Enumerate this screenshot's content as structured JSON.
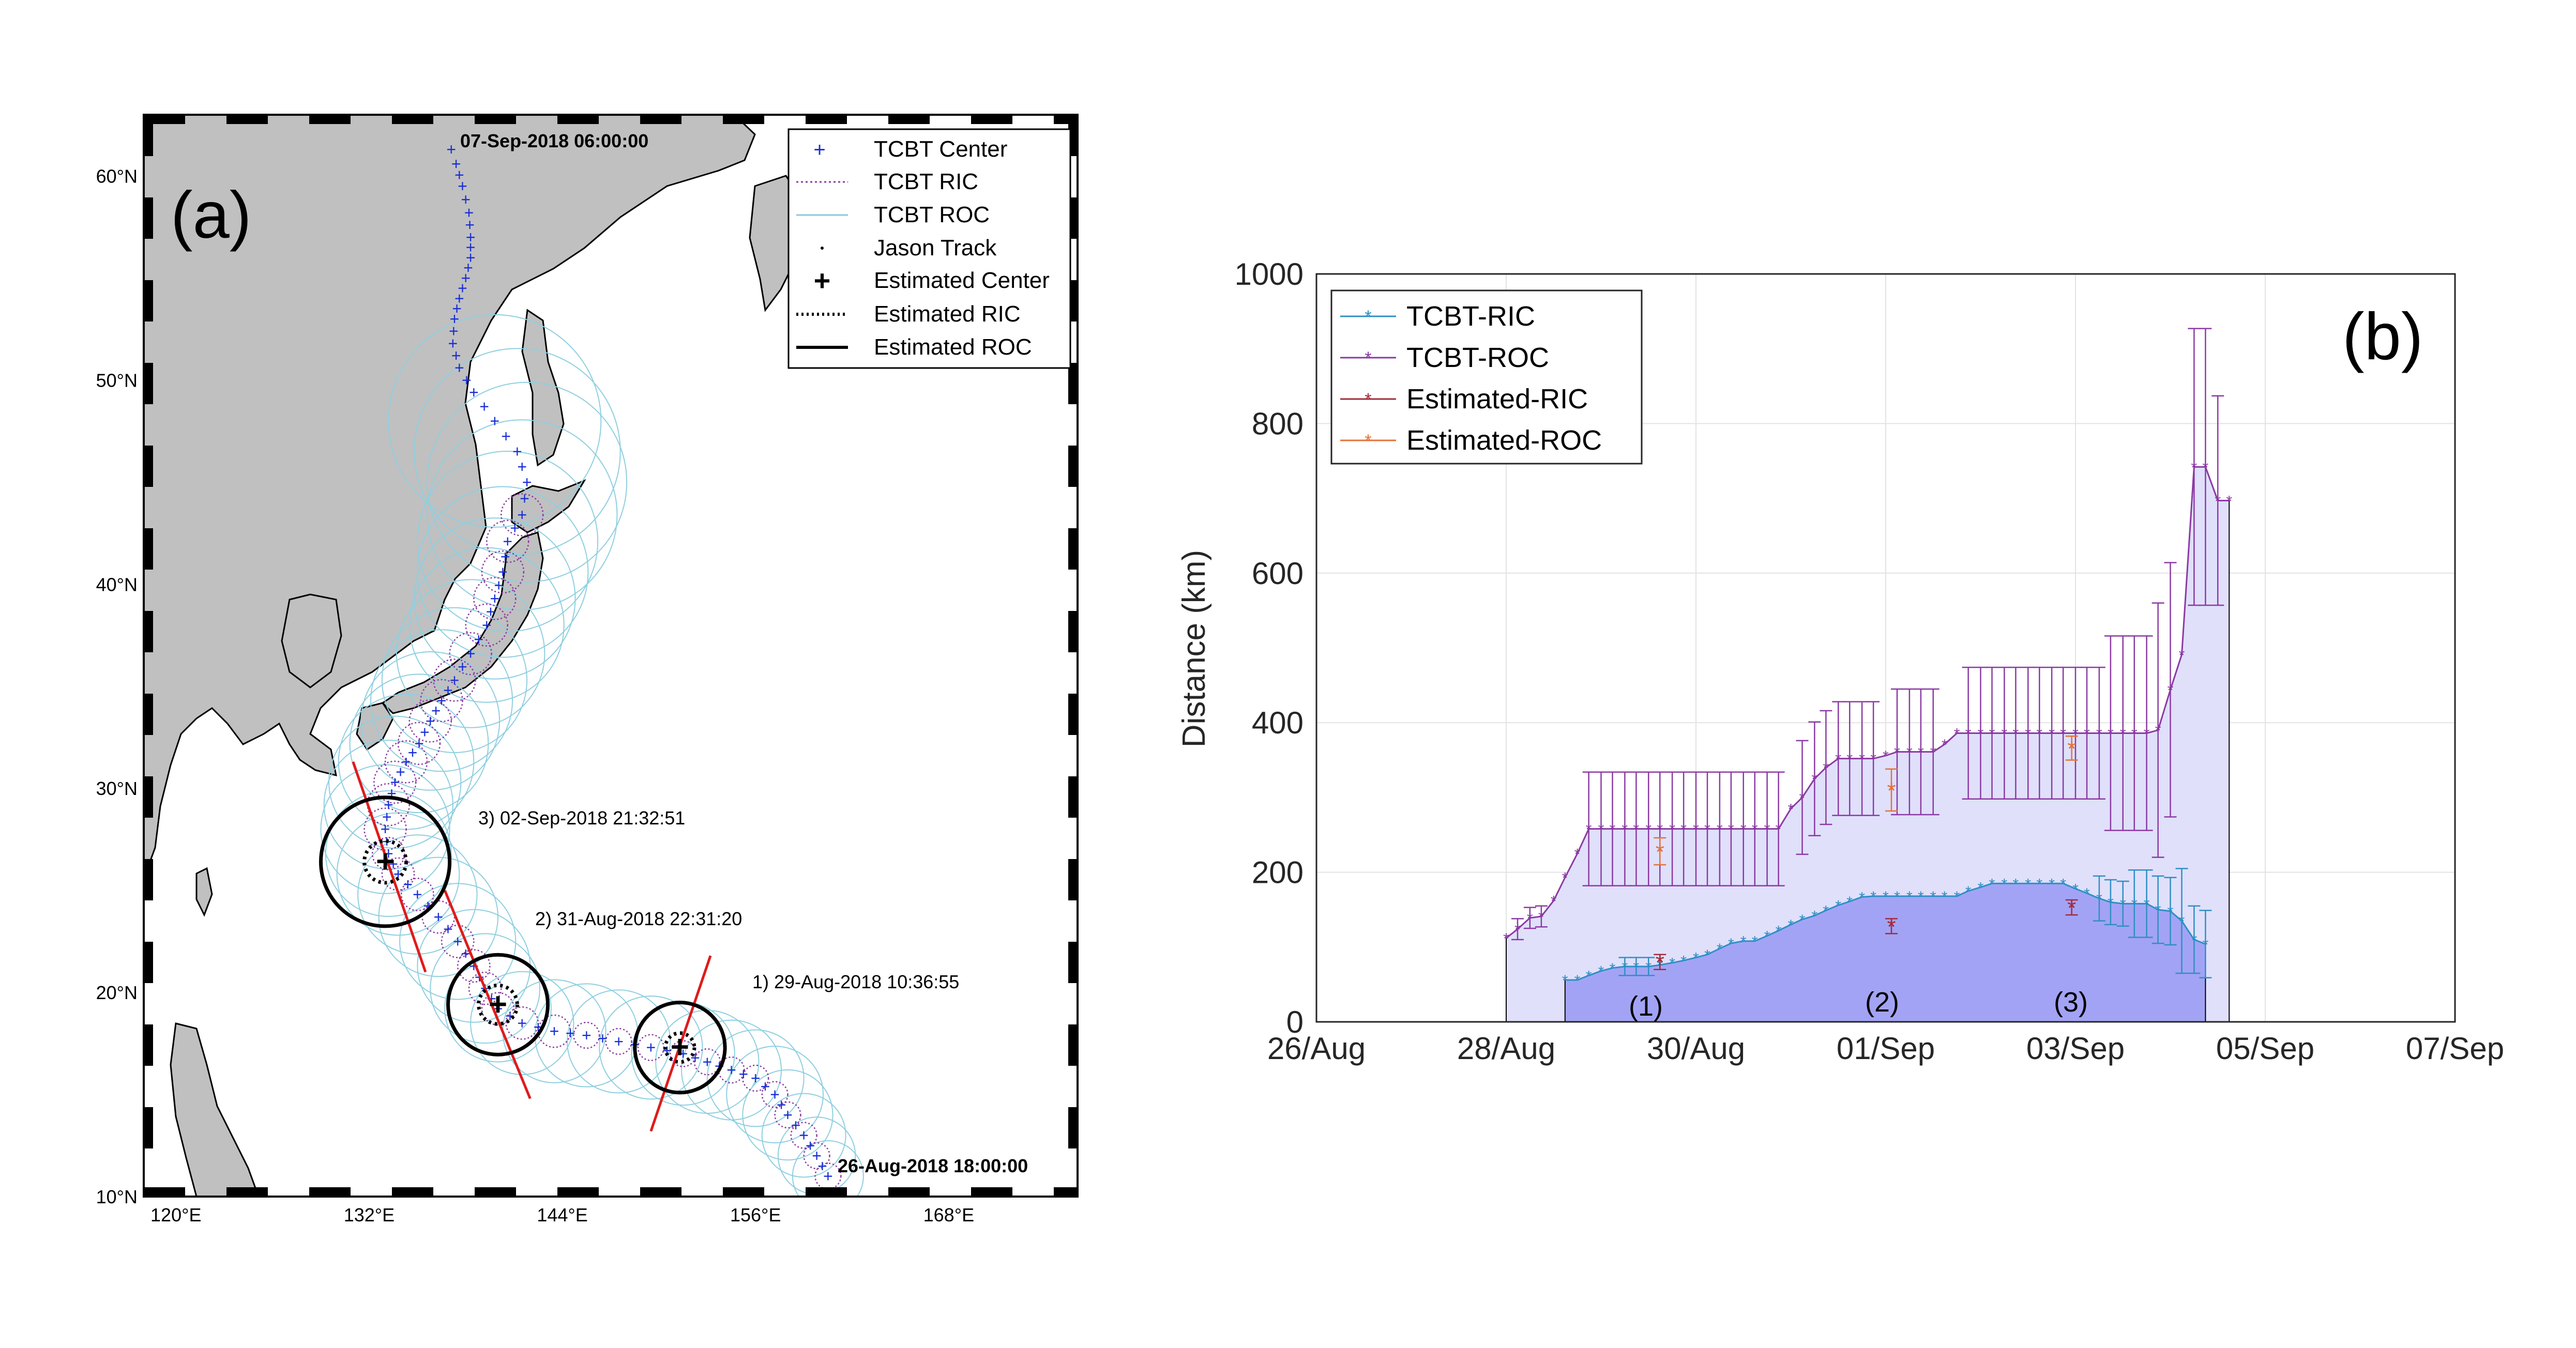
{
  "chart_data": [
    {
      "type": "scatter",
      "panel_label": "(a)",
      "xticks": [
        "120°E",
        "132°E",
        "144°E",
        "156°E",
        "168°E"
      ],
      "yticks": [
        "10°N",
        "20°N",
        "30°N",
        "40°N",
        "50°N",
        "60°N"
      ],
      "xlim": [
        118,
        176
      ],
      "ylim": [
        10,
        63
      ],
      "legend": {
        "placement": "top-right",
        "entries": [
          "TCBT Center",
          "TCBT RIC",
          "TCBT ROC",
          "Jason Track",
          "Estimated Center",
          "Estimated RIC",
          "Estimated ROC"
        ]
      },
      "annotations": {
        "start": "26-Aug-2018 18:00:00",
        "end": "07-Sep-2018 06:00:00",
        "pass1": "1) 29-Aug-2018 10:36:55",
        "pass2": "2) 31-Aug-2018 22:31:20",
        "pass3": "3) 02-Sep-2018 21:32:51"
      },
      "track": [
        [
          160.5,
          11.0
        ],
        [
          159.8,
          12.0
        ],
        [
          159.0,
          13.0
        ],
        [
          158.0,
          14.0
        ],
        [
          157.2,
          15.0
        ],
        [
          156.0,
          15.8
        ],
        [
          154.5,
          16.2
        ],
        [
          153.0,
          16.6
        ],
        [
          151.5,
          17.0
        ],
        [
          149.5,
          17.3
        ],
        [
          147.5,
          17.6
        ],
        [
          145.5,
          17.9
        ],
        [
          143.5,
          18.1
        ],
        [
          141.5,
          18.5
        ],
        [
          140.0,
          19.2
        ],
        [
          139.2,
          20.2
        ],
        [
          138.5,
          21.3
        ],
        [
          137.5,
          22.5
        ],
        [
          136.3,
          23.7
        ],
        [
          135.0,
          24.8
        ],
        [
          133.8,
          25.8
        ],
        [
          133.2,
          26.8
        ],
        [
          133.0,
          28.0
        ],
        [
          133.2,
          29.2
        ],
        [
          133.6,
          30.3
        ],
        [
          134.3,
          31.3
        ],
        [
          135.1,
          32.2
        ],
        [
          135.8,
          33.3
        ],
        [
          136.5,
          34.3
        ],
        [
          137.3,
          35.3
        ],
        [
          138.3,
          36.6
        ],
        [
          139.3,
          38.0
        ],
        [
          139.8,
          39.3
        ],
        [
          140.3,
          40.6
        ],
        [
          140.6,
          42.1
        ],
        [
          141.5,
          43.4
        ],
        [
          141.8,
          45.0
        ],
        [
          141.2,
          46.5
        ],
        [
          139.8,
          48.0
        ],
        [
          138.5,
          49.4
        ],
        [
          137.6,
          50.6
        ],
        [
          137.2,
          51.8
        ],
        [
          137.3,
          53.0
        ],
        [
          137.6,
          54.0
        ],
        [
          138.0,
          55.0
        ],
        [
          138.3,
          56.0
        ],
        [
          138.3,
          57.0
        ],
        [
          138.2,
          58.2
        ],
        [
          137.8,
          59.5
        ],
        [
          137.4,
          60.6
        ],
        [
          136.8,
          62.0
        ]
      ],
      "estimated": [
        {
          "center": [
            151.3,
            17.3
          ],
          "ric_deg": 0.9,
          "roc_deg": 2.8,
          "jason_line": [
            [
              149.5,
              13.2
            ],
            [
              153.2,
              21.8
            ]
          ]
        },
        {
          "center": [
            140.0,
            19.4
          ],
          "ric_deg": 1.2,
          "roc_deg": 3.1,
          "jason_line": [
            [
              142.0,
              14.8
            ],
            [
              136.7,
              25.0
            ]
          ]
        },
        {
          "center": [
            133.0,
            26.4
          ],
          "ric_deg": 1.3,
          "roc_deg": 4.0,
          "jason_line": [
            [
              135.5,
              21.0
            ],
            [
              131.0,
              31.3
            ]
          ]
        }
      ]
    },
    {
      "type": "line",
      "panel_label": "(b)",
      "ylabel": "Distance (km)",
      "xlabel": "",
      "xticks": [
        "26/Aug",
        "28/Aug",
        "30/Aug",
        "01/Sep",
        "03/Sep",
        "05/Sep",
        "07/Sep"
      ],
      "yticks": [
        "0",
        "200",
        "400",
        "600",
        "800",
        "1000"
      ],
      "ylim": [
        0,
        1000
      ],
      "grid": true,
      "legend": {
        "placement": "top-left",
        "entries": [
          "TCBT-RIC",
          "TCBT-ROC",
          "Estimated-RIC",
          "Estimated-ROC"
        ]
      },
      "series": [
        {
          "name": "TCBT-RIC",
          "color": "#2f8fc4",
          "x": [
            2.62,
            2.75,
            2.87,
            3.0,
            3.12,
            3.25,
            3.37,
            3.5,
            3.62,
            3.75,
            3.87,
            4.0,
            4.12,
            4.25,
            4.37,
            4.5,
            4.62,
            4.75,
            4.87,
            5.0,
            5.12,
            5.25,
            5.37,
            5.5,
            5.62,
            5.75,
            5.87,
            6.0,
            6.12,
            6.25,
            6.37,
            6.5,
            6.62,
            6.75,
            6.87,
            7.0,
            7.12,
            7.25,
            7.37,
            7.5,
            7.62,
            7.75,
            7.87,
            8.0,
            8.12,
            8.25,
            8.37,
            8.5,
            8.62,
            8.75,
            8.87,
            9.0,
            9.12,
            9.25,
            9.37
          ],
          "y": [
            56,
            56,
            62,
            68,
            72,
            74,
            74,
            74,
            76,
            79,
            82,
            86,
            90,
            98,
            105,
            108,
            108,
            115,
            122,
            130,
            137,
            142,
            149,
            156,
            161,
            167,
            168,
            168,
            168,
            168,
            168,
            168,
            168,
            168,
            175,
            180,
            185,
            185,
            185,
            185,
            185,
            185,
            185,
            178,
            172,
            165,
            160,
            158,
            158,
            158,
            150,
            148,
            135,
            110,
            104
          ],
          "err": [
            0,
            0,
            0,
            0,
            0,
            12,
            12,
            12,
            0,
            0,
            0,
            0,
            0,
            0,
            0,
            0,
            0,
            0,
            0,
            0,
            0,
            0,
            0,
            0,
            0,
            0,
            0,
            0,
            0,
            0,
            0,
            0,
            0,
            0,
            0,
            0,
            0,
            0,
            0,
            0,
            0,
            0,
            0,
            0,
            0,
            30,
            30,
            30,
            45,
            45,
            45,
            45,
            70,
            45,
            45
          ]
        },
        {
          "name": "TCBT-ROC",
          "color": "#8b3aa3",
          "x": [
            2.0,
            2.12,
            2.25,
            2.37,
            2.5,
            2.62,
            2.75,
            2.87,
            3.0,
            3.12,
            3.25,
            3.37,
            3.5,
            3.62,
            3.75,
            3.87,
            4.0,
            4.12,
            4.25,
            4.37,
            4.5,
            4.62,
            4.75,
            4.87,
            5.0,
            5.12,
            5.25,
            5.37,
            5.5,
            5.62,
            5.75,
            5.87,
            6.0,
            6.12,
            6.25,
            6.37,
            6.5,
            6.62,
            6.75,
            6.87,
            7.0,
            7.12,
            7.25,
            7.37,
            7.5,
            7.62,
            7.75,
            7.87,
            8.0,
            8.12,
            8.25,
            8.37,
            8.5,
            8.62,
            8.75,
            8.87,
            9.0,
            9.12,
            9.25,
            9.37,
            9.5,
            9.62
          ],
          "y": [
            112,
            124,
            139,
            141,
            162,
            193,
            225,
            258,
            258,
            258,
            258,
            258,
            258,
            258,
            258,
            258,
            258,
            258,
            258,
            258,
            258,
            258,
            258,
            258,
            285,
            300,
            325,
            340,
            352,
            352,
            352,
            352,
            356,
            361,
            361,
            361,
            361,
            371,
            386,
            386,
            386,
            386,
            386,
            386,
            386,
            386,
            386,
            386,
            386,
            386,
            386,
            386,
            386,
            386,
            386,
            390,
            444,
            491,
            742,
            742,
            697,
            697
          ],
          "err": [
            0,
            14,
            14,
            14,
            0,
            0,
            0,
            76,
            76,
            76,
            76,
            76,
            76,
            76,
            76,
            76,
            76,
            76,
            76,
            76,
            76,
            76,
            76,
            76,
            0,
            76,
            76,
            76,
            76,
            76,
            76,
            76,
            0,
            84,
            84,
            84,
            84,
            0,
            0,
            88,
            88,
            88,
            88,
            88,
            88,
            88,
            88,
            88,
            88,
            88,
            88,
            130,
            130,
            130,
            130,
            170,
            170,
            0,
            185,
            185,
            140,
            0
          ]
        },
        {
          "name": "Estimated-RIC",
          "color": "#a42b3c",
          "x": [
            3.62,
            6.06,
            7.96
          ],
          "y": [
            80,
            128,
            153
          ],
          "err": [
            10,
            10,
            10
          ]
        },
        {
          "name": "Estimated-ROC",
          "color": "#e3723a",
          "x": [
            3.62,
            6.06,
            7.96
          ],
          "y": [
            228,
            310,
            366
          ],
          "err": [
            18,
            28,
            16
          ]
        }
      ],
      "shaded_regions": [
        {
          "label": "(1)",
          "x_start": 2.62,
          "x_end": 3.62
        },
        {
          "label": "(2)",
          "x_start": 4.87,
          "x_end": 6.87
        },
        {
          "label": "(3)",
          "x_start": 6.87,
          "x_end": 9.5
        }
      ]
    }
  ]
}
